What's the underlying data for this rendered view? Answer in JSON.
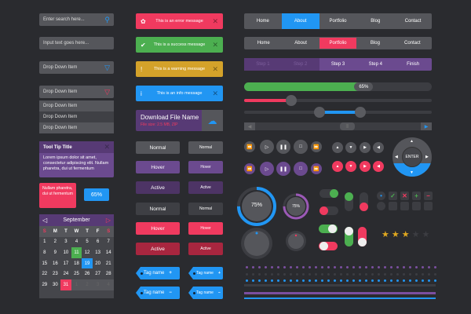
{
  "search": {
    "placeholder": "Enter search here..."
  },
  "text_input": {
    "placeholder": "Input text goes here..."
  },
  "dropdown": {
    "label": "Drop Down Item",
    "open_label": "Drop Down Item",
    "items": [
      "Drop Down Item",
      "Drop Down Item",
      "Drop Down Item"
    ]
  },
  "tooltip": {
    "title": "Tool Tip Title",
    "body": "Lorem ipsum dolor sit amet, consectetur adipiscing elit. Nullam pharetra, dui ut fermentum",
    "red_body": "Nullam pharetra, dui ut fermentum",
    "badge": "65%"
  },
  "calendar": {
    "month": "September",
    "weekdays": [
      "S",
      "M",
      "T",
      "W",
      "T",
      "F",
      "S"
    ],
    "days": [
      "1",
      "2",
      "3",
      "4",
      "5",
      "6",
      "7",
      "8",
      "9",
      "10",
      "11",
      "12",
      "13",
      "14",
      "15",
      "16",
      "17",
      "18",
      "19",
      "20",
      "21",
      "22",
      "23",
      "24",
      "25",
      "26",
      "27",
      "28",
      "29",
      "30",
      "31",
      "1",
      "2",
      "3",
      "4"
    ],
    "highlight": {
      "11": "#4caf50",
      "19": "#2196f3",
      "31": "#f03a5f"
    }
  },
  "alerts": [
    {
      "text": "This is an error message",
      "color": "#f03a5f",
      "icon": "bug-icon"
    },
    {
      "text": "This is a success message",
      "color": "#4caf50",
      "icon": "check-icon"
    },
    {
      "text": "This is a warning message",
      "color": "#d4a22a",
      "icon": "exclamation-icon"
    },
    {
      "text": "This is an info message",
      "color": "#2196f3",
      "icon": "info-icon"
    }
  ],
  "download": {
    "title": "Download File Name",
    "meta": "File size: 2.5 MB, ZIP"
  },
  "buttons": {
    "normal": "Normal",
    "hover": "Hover",
    "active": "Active"
  },
  "tags": {
    "label": "Tag name"
  },
  "nav1": {
    "items": [
      "Home",
      "About",
      "Portfolio",
      "Blog",
      "Contact"
    ],
    "active": 1
  },
  "nav2": {
    "items": [
      "Home",
      "About",
      "Portfolio",
      "Blog",
      "Contact"
    ],
    "active": 2
  },
  "steps": {
    "items": [
      "Step 1",
      "Step 2",
      "Step 3",
      "Step 4",
      "Finish"
    ],
    "current": 2
  },
  "progress": {
    "value": 65,
    "label": "65%"
  },
  "slider": {
    "value": 0.25
  },
  "range": {
    "low": 0.4,
    "high": 0.62
  },
  "gauges": {
    "big": "75%",
    "small": "75%",
    "value": 75
  },
  "dpad": {
    "enter": "ENTER"
  },
  "rating": {
    "value": 3,
    "max": 5
  },
  "colors": {
    "bg": "#2a2b2f",
    "blue": "#2196f3",
    "red": "#f03a5f",
    "green": "#4caf50",
    "purple": "#6b3f8a",
    "gray": "#55565b"
  }
}
